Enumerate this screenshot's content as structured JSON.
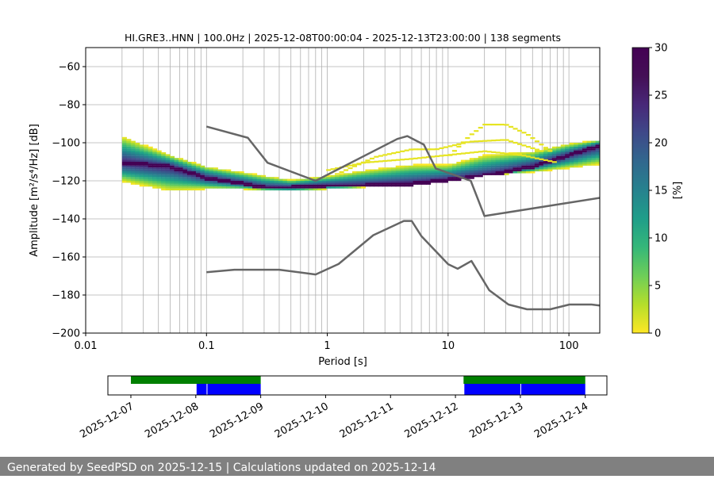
{
  "chart_data": [
    {
      "type": "heatmap",
      "title": "HI.GRE3..HNN | 100.0Hz | 2025-12-08T00:00:04 - 2025-12-13T23:00:00 | 138 segments",
      "xlabel": "Period [s]",
      "ylabel": "Amplitude [m²/s⁴/Hz] [dB]",
      "x_scale": "log",
      "xlim": [
        0.01,
        180
      ],
      "ylim": [
        -200,
        -50
      ],
      "x_ticks": [
        "0.01",
        "0.1",
        "1",
        "10",
        "100"
      ],
      "y_ticks": [
        "−60",
        "−80",
        "−100",
        "−120",
        "−140",
        "−160",
        "−180",
        "−200"
      ],
      "grid": "vertical minor and major log grid, horizontal major grid",
      "colorbar": {
        "label": "[%]",
        "range": [
          0,
          30
        ],
        "ticks": [
          "0",
          "5",
          "10",
          "15",
          "20",
          "25",
          "30"
        ],
        "colormap": "viridis_r"
      },
      "mode_curve": {
        "period": [
          0.02,
          0.05,
          0.1,
          0.2,
          0.3,
          0.5,
          1,
          2,
          5,
          10,
          20,
          50,
          100,
          180
        ],
        "db": [
          -110,
          -112,
          -118,
          -121,
          -123,
          -123,
          -122,
          -122,
          -121,
          -119,
          -117,
          -112,
          -106,
          -101
        ]
      },
      "spread_low": {
        "period": [
          0.02,
          0.05,
          0.1,
          0.2,
          0.5,
          1,
          2,
          5,
          10,
          20,
          50,
          100,
          180
        ],
        "db": [
          -120,
          -125,
          -124,
          -124,
          -125,
          -124,
          -123,
          -122,
          -120,
          -117,
          -115,
          -113,
          -111
        ]
      },
      "spread_high": {
        "period": [
          0.02,
          0.05,
          0.1,
          0.2,
          0.5,
          1,
          2,
          5,
          10,
          20,
          50,
          100,
          180
        ],
        "db": [
          -96,
          -106,
          -112,
          -115,
          -119,
          -117,
          -114,
          -111,
          -111,
          -106,
          -104,
          -100,
          -98
        ]
      },
      "side_bands": [
        {
          "period": [
            1,
            2,
            5,
            10,
            20,
            40,
            80
          ],
          "db": [
            -114,
            -110,
            -108,
            -106,
            -104,
            -106,
            -110
          ]
        },
        {
          "period": [
            1.2,
            2.5,
            5,
            8,
            15,
            30,
            60
          ],
          "db": [
            -116,
            -107,
            -103,
            -103,
            -99,
            -98,
            -104
          ]
        },
        {
          "period": [
            10,
            15,
            20,
            30,
            45,
            70
          ],
          "db": [
            -107,
            -96,
            -90,
            -90,
            -95,
            -104
          ]
        }
      ],
      "noise_models": [
        {
          "period": [
            0.1,
            0.22,
            0.32,
            0.8,
            3.8,
            4.6,
            6.3,
            7.9,
            15.4,
            20,
            354.8
          ],
          "db": [
            -91.5,
            -97.4,
            -110.5,
            -120,
            -98,
            -96.5,
            -101,
            -113.5,
            -120,
            -138.5,
            -126
          ]
        },
        {
          "period": [
            0.1,
            0.17,
            0.4,
            0.8,
            1.24,
            2.4,
            4.3,
            5,
            6,
            10,
            12,
            15.6,
            21.9,
            31.6,
            45,
            70,
            101,
            154,
            328,
            600
          ],
          "db": [
            -168,
            -166.7,
            -166.7,
            -169.2,
            -163.7,
            -148.6,
            -141.1,
            -141.1,
            -149,
            -163.8,
            -166.2,
            -162.1,
            -177.5,
            -185,
            -187.5,
            -187.5,
            -185,
            -185,
            -187.5,
            -184.4
          ]
        }
      ]
    },
    {
      "type": "timeline",
      "x_ticks": [
        "2025-12-07",
        "2025-12-08",
        "2025-12-09",
        "2025-12-10",
        "2025-12-11",
        "2025-12-12",
        "2025-12-13",
        "2025-12-14"
      ],
      "xlim": [
        "2025-12-06T15:30",
        "2025-12-14T08:00"
      ],
      "coverage_green": [
        {
          "start": "2025-12-07T00:00",
          "end": "2025-12-09T00:00"
        },
        {
          "start": "2025-12-12T03:00",
          "end": "2025-12-14T00:00"
        }
      ],
      "segments_blue": [
        {
          "start": "2025-12-08T00:00",
          "end": "2025-12-08T04:00"
        },
        {
          "start": "2025-12-08T04:00",
          "end": "2025-12-09T00:00"
        },
        {
          "start": "2025-12-12T03:00",
          "end": "2025-12-13T00:00"
        },
        {
          "start": "2025-12-13T00:00",
          "end": "2025-12-14T00:00"
        }
      ],
      "colors": {
        "green": "#008000",
        "blue": "#0000ff"
      }
    }
  ],
  "footer": {
    "text": "Generated by SeedPSD on 2025-12-15 | Calculations updated on 2025-12-14"
  }
}
